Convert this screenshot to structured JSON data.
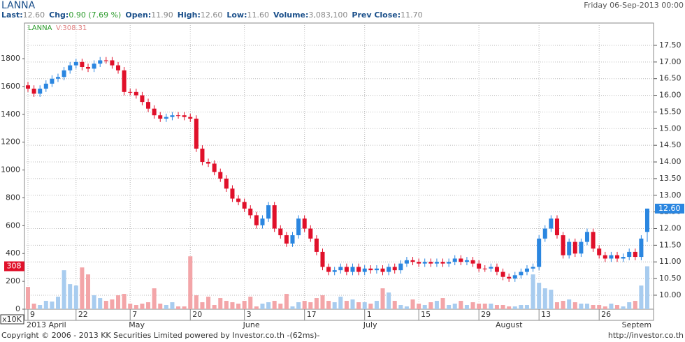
{
  "header": {
    "symbol": "LANNA",
    "date": "Friday 06-Sep-2013 00:00",
    "quote": [
      {
        "label": "Last:",
        "value": "12.60"
      },
      {
        "label": "Chg:",
        "value": "0.90 (7.69 %)"
      },
      {
        "label": "Open:",
        "value": "11.90"
      },
      {
        "label": "High:",
        "value": "12.60"
      },
      {
        "label": "Low:",
        "value": "11.60"
      },
      {
        "label": "Volume:",
        "value": "3,083,100"
      },
      {
        "label": "Prev Close:",
        "value": "11.70"
      }
    ]
  },
  "footer": {
    "copyright": "Copyright © 2006 - 2013 KK Securities Limited powered by Investor.co.th -(62ms)-",
    "link": "http://investor.co.th"
  },
  "chart_data": {
    "type": "candlestick",
    "legend": {
      "symbol": "LANNA",
      "volume": "V:308.31"
    },
    "last_price_label": "12.60",
    "last_volume_label": "308",
    "volume_unit": "x10K",
    "up_color": "#2a86e0",
    "down_color": "#e0102a",
    "up_volume_color": "#a8ccef",
    "down_volume_color": "#f3a5a8",
    "grid": true,
    "categories": [
      "9",
      null,
      null,
      null,
      null,
      null,
      null,
      null,
      "22",
      null,
      null,
      null,
      null,
      null,
      null,
      null,
      null,
      "7",
      null,
      null,
      null,
      null,
      null,
      null,
      null,
      null,
      null,
      "20",
      null,
      null,
      null,
      null,
      null,
      null,
      null,
      null,
      "3",
      null,
      null,
      null,
      null,
      null,
      null,
      null,
      null,
      null,
      "17",
      null,
      null,
      null,
      null,
      null,
      null,
      null,
      null,
      null,
      "1",
      null,
      null,
      null,
      null,
      null,
      null,
      null,
      null,
      "15",
      null,
      null,
      null,
      null,
      null,
      null,
      null,
      null,
      null,
      "29",
      null,
      null,
      null,
      null,
      null,
      null,
      null,
      null,
      null,
      "13",
      null,
      null,
      null,
      null,
      null,
      null,
      null,
      null,
      null,
      "26",
      null,
      null,
      null,
      null,
      null,
      null,
      null,
      null
    ],
    "months": [
      "2013 April",
      null,
      null,
      null,
      null,
      null,
      null,
      null,
      null,
      null,
      null,
      null,
      null,
      null,
      null,
      null,
      null,
      "May",
      null,
      null,
      null,
      null,
      null,
      null,
      null,
      null,
      null,
      null,
      null,
      null,
      null,
      null,
      null,
      null,
      null,
      null,
      "June",
      null,
      null,
      null,
      null,
      null,
      null,
      null,
      null,
      null,
      null,
      null,
      null,
      null,
      null,
      null,
      null,
      null,
      null,
      null,
      "July",
      null,
      null,
      null,
      null,
      null,
      null,
      null,
      null,
      null,
      null,
      null,
      null,
      null,
      null,
      null,
      null,
      null,
      null,
      null,
      null,
      null,
      "August",
      null,
      null,
      null,
      null,
      null,
      null,
      null,
      null,
      null,
      null,
      null,
      null,
      null,
      null,
      null,
      null,
      null,
      null,
      null,
      null,
      "Septem",
      null,
      null,
      null,
      null
    ],
    "open": [
      16.3,
      16.2,
      16.05,
      16.2,
      16.35,
      16.5,
      16.55,
      16.75,
      16.9,
      17.0,
      16.85,
      16.8,
      16.95,
      17.05,
      17.05,
      16.9,
      16.75,
      16.1,
      16.1,
      16.0,
      15.8,
      15.6,
      15.4,
      15.3,
      15.35,
      15.4,
      15.4,
      15.35,
      15.3,
      14.4,
      14.0,
      13.95,
      13.7,
      13.5,
      13.2,
      12.9,
      12.8,
      12.6,
      12.4,
      12.1,
      12.3,
      12.7,
      12.0,
      11.8,
      11.55,
      11.8,
      12.3,
      12.0,
      11.7,
      11.3,
      10.85,
      10.7,
      10.75,
      10.85,
      10.7,
      10.85,
      10.7,
      10.8,
      10.75,
      10.8,
      10.7,
      10.85,
      10.75,
      10.95,
      11.05,
      11.0,
      10.95,
      11.0,
      10.95,
      11.0,
      10.95,
      11.0,
      11.1,
      11.0,
      11.05,
      10.95,
      10.8,
      10.8,
      10.85,
      10.7,
      10.55,
      10.5,
      10.6,
      10.7,
      10.8,
      10.85,
      11.7,
      12.0,
      12.3,
      11.8,
      11.2,
      11.6,
      11.25,
      11.6,
      11.9,
      11.4,
      11.2,
      11.1,
      11.2,
      11.1,
      11.15,
      11.3,
      11.15,
      11.9
    ],
    "high": [
      16.4,
      16.3,
      16.3,
      16.45,
      16.6,
      16.65,
      16.85,
      17.0,
      17.1,
      17.1,
      16.95,
      17.05,
      17.15,
      17.15,
      17.15,
      17.0,
      16.85,
      16.2,
      16.2,
      16.1,
      15.9,
      15.7,
      15.5,
      15.45,
      15.5,
      15.5,
      15.5,
      15.45,
      15.4,
      14.5,
      14.1,
      14.05,
      13.8,
      13.6,
      13.3,
      13.0,
      12.9,
      12.7,
      12.5,
      12.4,
      12.8,
      12.8,
      12.1,
      11.9,
      11.9,
      12.4,
      12.4,
      12.1,
      11.8,
      11.4,
      10.95,
      10.85,
      10.95,
      10.95,
      10.95,
      10.95,
      10.9,
      10.9,
      10.9,
      10.9,
      10.95,
      10.95,
      11.05,
      11.15,
      11.15,
      11.1,
      11.1,
      11.1,
      11.1,
      11.1,
      11.1,
      11.2,
      11.2,
      11.15,
      11.15,
      11.05,
      10.9,
      10.95,
      10.95,
      10.8,
      10.65,
      10.7,
      10.8,
      10.9,
      10.95,
      11.8,
      12.1,
      12.4,
      12.4,
      11.9,
      11.7,
      11.7,
      11.7,
      12.0,
      12.0,
      11.5,
      11.3,
      11.3,
      11.3,
      11.25,
      11.4,
      11.4,
      11.8,
      12.6
    ],
    "low": [
      16.1,
      15.95,
      15.95,
      16.1,
      16.25,
      16.4,
      16.45,
      16.65,
      16.8,
      16.75,
      16.7,
      16.7,
      16.85,
      16.95,
      16.8,
      16.65,
      16.0,
      16.0,
      15.9,
      15.7,
      15.5,
      15.3,
      15.2,
      15.2,
      15.25,
      15.3,
      15.25,
      15.2,
      14.3,
      13.9,
      13.85,
      13.6,
      13.4,
      13.1,
      12.8,
      12.7,
      12.5,
      12.3,
      12.0,
      12.0,
      12.2,
      11.9,
      11.7,
      11.45,
      11.45,
      11.7,
      11.9,
      11.6,
      11.2,
      10.75,
      10.6,
      10.6,
      10.65,
      10.6,
      10.6,
      10.6,
      10.6,
      10.65,
      10.65,
      10.6,
      10.6,
      10.65,
      10.65,
      10.85,
      10.9,
      10.85,
      10.85,
      10.85,
      10.85,
      10.85,
      10.85,
      10.9,
      10.9,
      10.9,
      10.85,
      10.7,
      10.7,
      10.7,
      10.6,
      10.45,
      10.4,
      10.4,
      10.5,
      10.6,
      10.7,
      10.75,
      11.6,
      11.9,
      11.7,
      11.1,
      11.1,
      11.15,
      11.15,
      11.5,
      11.3,
      11.1,
      11.0,
      11.0,
      11.0,
      11.0,
      11.05,
      11.05,
      11.05,
      11.6
    ],
    "close": [
      16.2,
      16.05,
      16.2,
      16.35,
      16.5,
      16.55,
      16.75,
      16.9,
      17.0,
      16.85,
      16.8,
      16.95,
      17.05,
      17.05,
      16.9,
      16.75,
      16.1,
      16.1,
      16.0,
      15.8,
      15.6,
      15.4,
      15.3,
      15.35,
      15.4,
      15.4,
      15.35,
      15.3,
      14.4,
      14.0,
      13.95,
      13.7,
      13.5,
      13.2,
      12.9,
      12.8,
      12.6,
      12.4,
      12.1,
      12.3,
      12.7,
      12.0,
      11.8,
      11.55,
      11.8,
      12.3,
      12.0,
      11.7,
      11.3,
      10.85,
      10.7,
      10.75,
      10.85,
      10.7,
      10.85,
      10.7,
      10.8,
      10.75,
      10.8,
      10.7,
      10.85,
      10.75,
      10.95,
      11.05,
      11.0,
      10.95,
      11.0,
      10.95,
      11.0,
      10.95,
      11.0,
      11.1,
      11.0,
      11.05,
      10.95,
      10.8,
      10.8,
      10.85,
      10.7,
      10.55,
      10.5,
      10.6,
      10.7,
      10.8,
      10.85,
      11.7,
      12.0,
      12.3,
      11.8,
      11.2,
      11.6,
      11.25,
      11.6,
      11.9,
      11.4,
      11.2,
      11.1,
      11.2,
      11.1,
      11.15,
      11.3,
      11.15,
      11.7,
      12.6
    ],
    "volume": [
      160,
      40,
      30,
      60,
      55,
      90,
      280,
      180,
      170,
      300,
      250,
      100,
      80,
      60,
      70,
      100,
      110,
      40,
      30,
      40,
      50,
      150,
      40,
      30,
      50,
      20,
      20,
      380,
      100,
      50,
      90,
      30,
      80,
      60,
      50,
      40,
      60,
      90,
      20,
      40,
      50,
      60,
      40,
      110,
      20,
      50,
      60,
      50,
      80,
      100,
      60,
      50,
      90,
      60,
      70,
      50,
      50,
      40,
      60,
      150,
      120,
      60,
      30,
      20,
      70,
      40,
      30,
      50,
      60,
      80,
      30,
      40,
      60,
      30,
      50,
      40,
      40,
      40,
      30,
      30,
      20,
      20,
      30,
      30,
      250,
      190,
      150,
      140,
      50,
      60,
      70,
      50,
      40,
      40,
      30,
      30,
      20,
      40,
      30,
      20,
      50,
      60,
      170,
      308.31
    ],
    "ylim": [
      0,
      2056
    ],
    "yticks": [
      0,
      200,
      400,
      600,
      800,
      1000,
      1200,
      1400,
      1600,
      1800
    ],
    "y2lim": [
      9.58,
      18.17
    ],
    "y2ticks": [
      {
        "value": 10,
        "label": "10.00"
      },
      {
        "value": 10.5,
        "label": "10.50"
      },
      {
        "value": 11,
        "label": "11.00"
      },
      {
        "value": 11.5,
        "label": "11.50"
      },
      {
        "value": 12,
        "label": "12.00"
      },
      {
        "value": 12.5,
        "label": "12.50"
      },
      {
        "value": 13,
        "label": "13.00"
      },
      {
        "value": 13.5,
        "label": "13.50"
      },
      {
        "value": 14,
        "label": "14.00"
      },
      {
        "value": 14.5,
        "label": "14.50"
      },
      {
        "value": 15,
        "label": "15.00"
      },
      {
        "value": 15.5,
        "label": "15.50"
      },
      {
        "value": 16,
        "label": "16.00"
      },
      {
        "value": 16.5,
        "label": "16.50"
      },
      {
        "value": 17,
        "label": "17.00"
      },
      {
        "value": 17.5,
        "label": "17.50"
      }
    ]
  }
}
